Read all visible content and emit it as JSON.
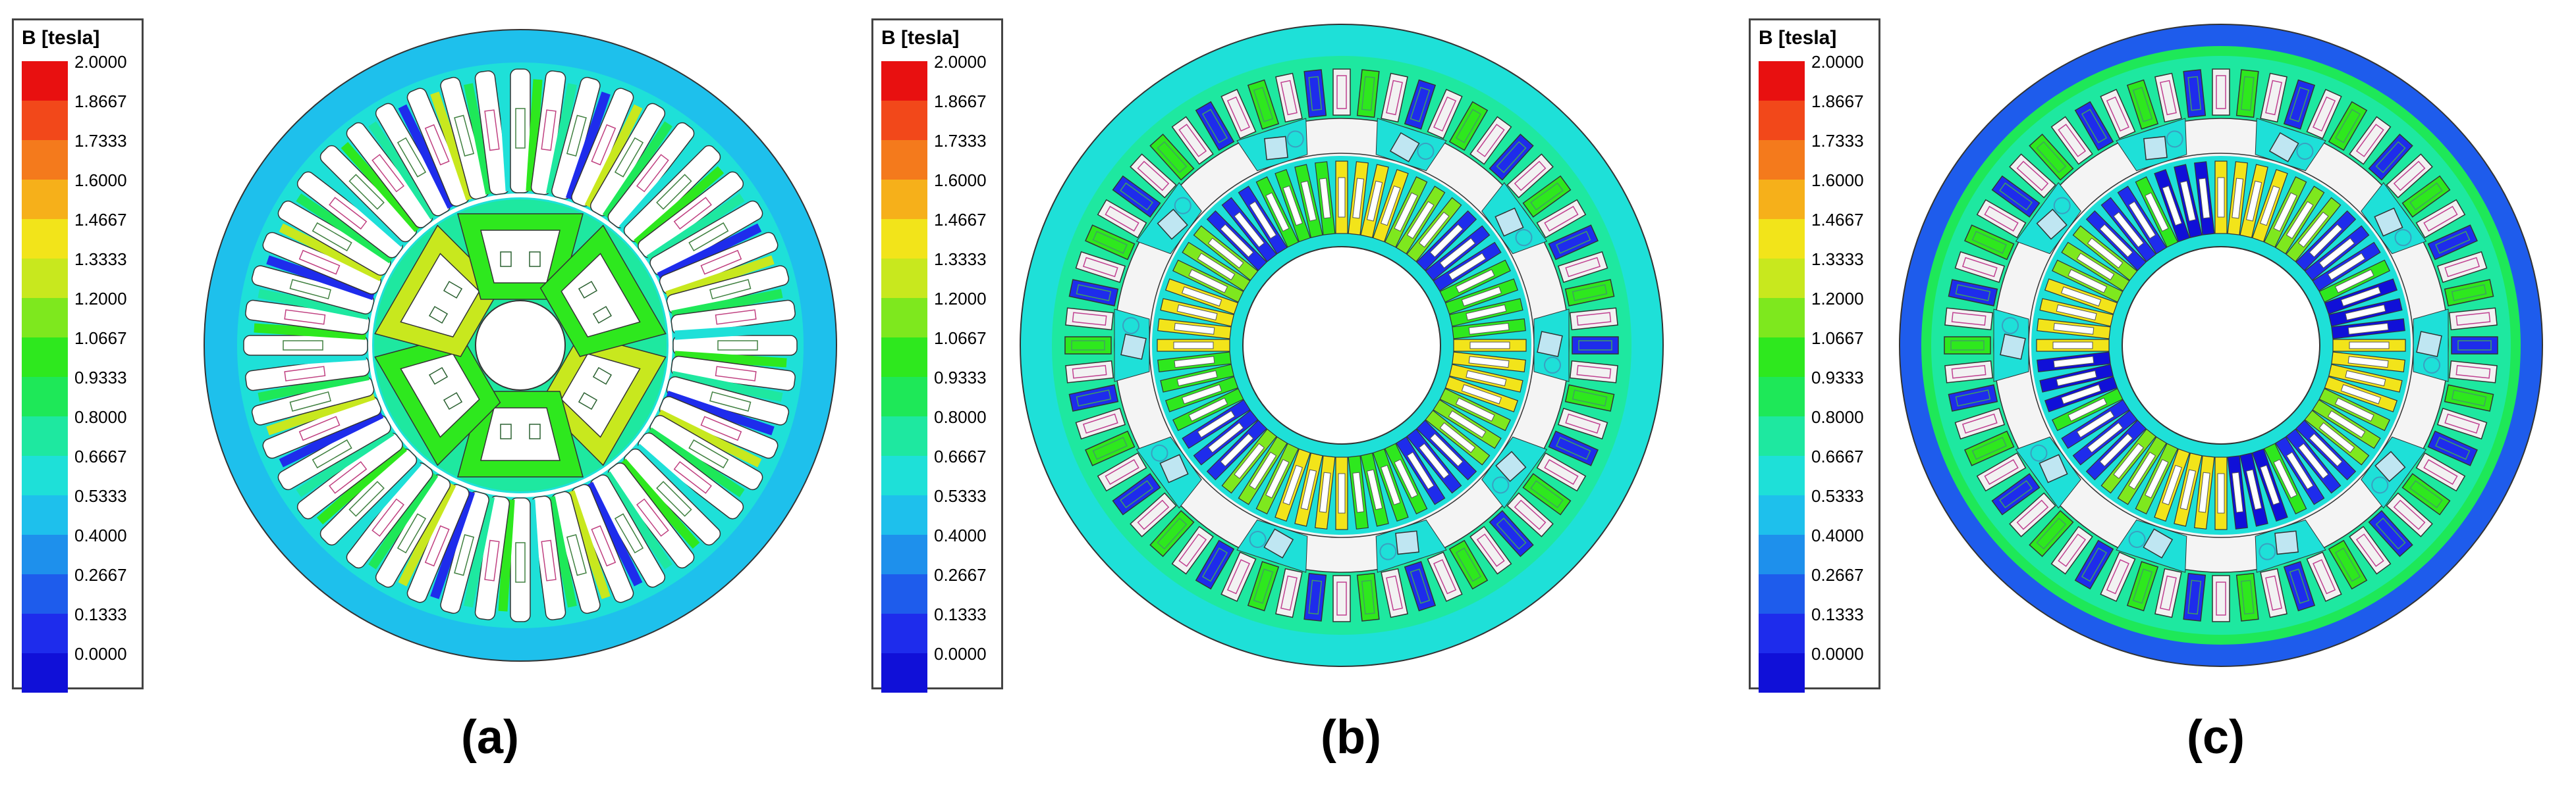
{
  "legend": {
    "title": "B [tesla]",
    "labels": [
      "2.0000",
      "1.8667",
      "1.7333",
      "1.6000",
      "1.4667",
      "1.3333",
      "1.2000",
      "1.0667",
      "0.9333",
      "0.8000",
      "0.6667",
      "0.5333",
      "0.4000",
      "0.2667",
      "0.1333",
      "0.0000"
    ],
    "colors": [
      "#e81010",
      "#f2481a",
      "#f47a1c",
      "#f6b01a",
      "#f2e41a",
      "#c8e81e",
      "#7ee81e",
      "#2ee81e",
      "#1ee858",
      "#1ee8a0",
      "#1ee0d8",
      "#1ec0ec",
      "#1e90ec",
      "#1e5cec",
      "#1e2cec",
      "#1010d8"
    ]
  },
  "panels": [
    {
      "label": "(a)"
    },
    {
      "label": "(b)"
    },
    {
      "label": "(c)"
    }
  ]
}
